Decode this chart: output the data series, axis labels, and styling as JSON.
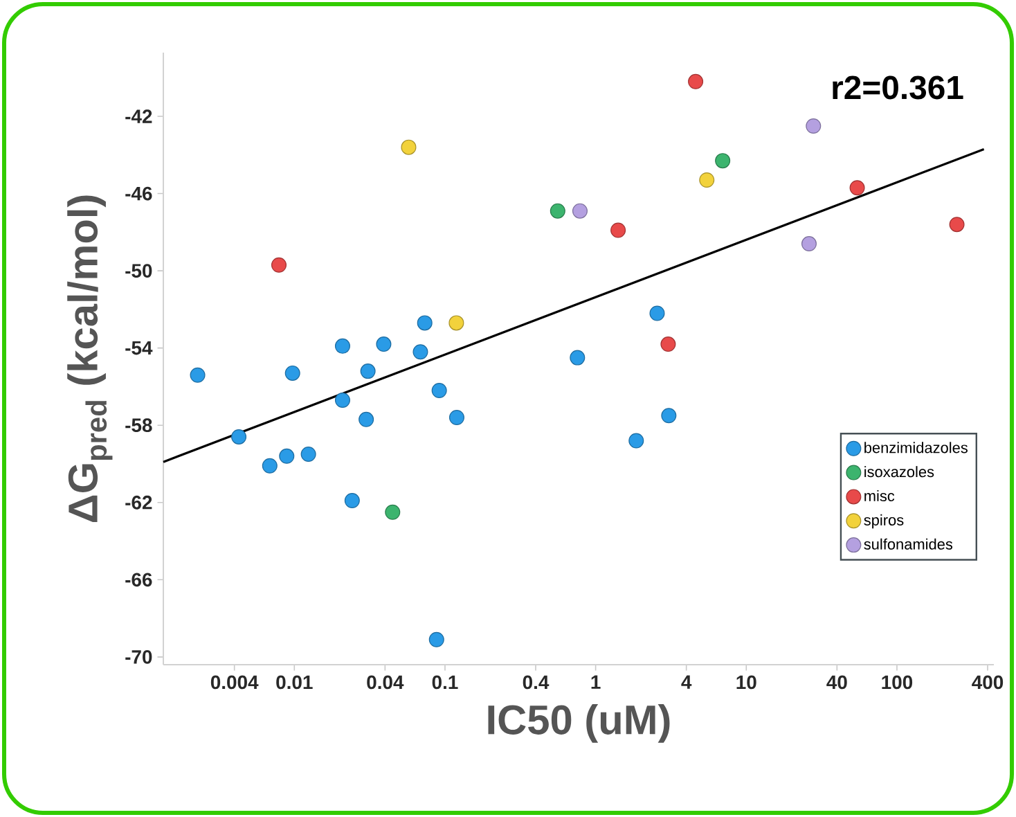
{
  "chart_data": {
    "type": "scatter",
    "xlabel": "IC50 (uM)",
    "ylabel": "ΔG$_{pred}$ (kcal/mol)",
    "annotations": [
      "r2=0.361"
    ],
    "log": "x",
    "grid": false,
    "legend": "bottom right",
    "marker": "circle",
    "xlim": [
      0.00135,
      440
    ],
    "ylim": [
      -70.4,
      -38.7
    ],
    "xticks": [
      0.004,
      0.01,
      0.04,
      0.1,
      0.4,
      1,
      4,
      10,
      40,
      100,
      400
    ],
    "yticks": [
      -42,
      -46,
      -50,
      -54,
      -58,
      -62,
      -66,
      -70
    ],
    "series": [
      {
        "name": "benzimidazoles",
        "color": "#2a9be6",
        "x": [
          0.0734,
          0.0209,
          0.0392,
          0.0687,
          0.00228,
          0.00973,
          0.0308,
          0.0209,
          0.0916,
          0.03,
          0.1197,
          0.00428,
          0.00687,
          0.0089,
          0.0124,
          0.0242,
          0.0879,
          2.56,
          0.757,
          3.06,
          1.86
        ],
        "values": [
          -52.7,
          -53.9,
          -53.8,
          -54.2,
          -55.4,
          -55.3,
          -55.2,
          -56.7,
          -56.2,
          -57.7,
          -57.6,
          -58.6,
          -60.1,
          -59.6,
          -59.5,
          -61.9,
          -69.1,
          -52.2,
          -54.5,
          -57.5,
          -58.8
        ]
      },
      {
        "name": "isoxazoles",
        "color": "#3cb46e",
        "x": [
          0.56,
          6.97,
          0.0449
        ],
        "values": [
          -46.9,
          -44.3,
          -62.5
        ]
      },
      {
        "name": "misc",
        "color": "#e84a4a",
        "x": [
          0.0079,
          4.61,
          54.5,
          1.41,
          250,
          3.03
        ],
        "values": [
          -49.7,
          -40.2,
          -45.7,
          -47.9,
          -47.6,
          -53.8
        ]
      },
      {
        "name": "spiros",
        "color": "#f2d23c",
        "x": [
          0.0574,
          0.119,
          5.47
        ],
        "values": [
          -43.6,
          -52.7,
          -45.3
        ]
      },
      {
        "name": "sulfonamides",
        "color": "#b4a0e0",
        "x": [
          27.9,
          0.787,
          26.1
        ],
        "values": [
          -42.5,
          -46.9,
          -48.6
        ]
      },
      {
        "type": "line",
        "color": "#000000",
        "line_style": "solid",
        "marker": "none",
        "x": [
          0.00135,
          378
        ],
        "values": [
          -59.9,
          -43.7
        ]
      }
    ]
  }
}
